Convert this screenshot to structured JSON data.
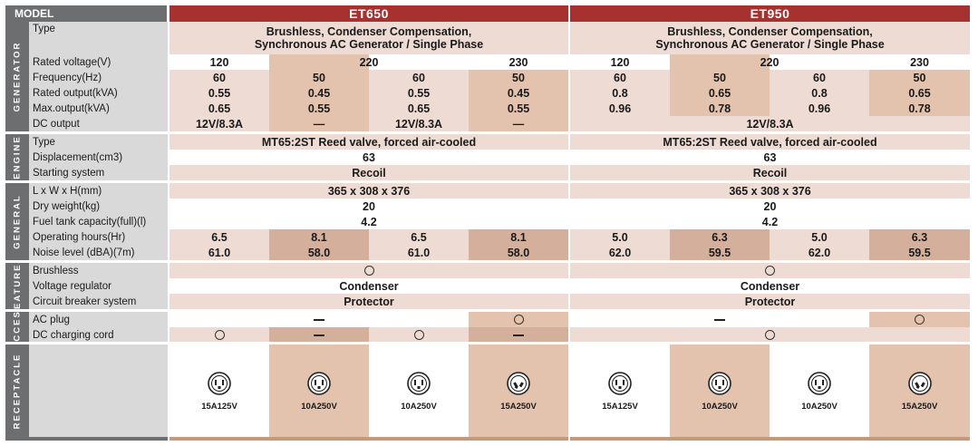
{
  "header": {
    "model_label": "MODEL",
    "et650": "ET650",
    "et950": "ET950"
  },
  "sections": [
    "GENERATOR",
    "ENGINE",
    "GENERAL",
    "FEATURES",
    "ACCES.",
    "RECEPTACLE"
  ],
  "labels": {
    "type": "Type",
    "voltage": "Rated voltage(V)",
    "frequency": "Frequency(Hz)",
    "rated_output": "Rated output(kVA)",
    "max_output": "Max.output(kVA)",
    "dc_output": "DC output",
    "engine_type": "Type",
    "displacement": "Displacement(cm3)",
    "starting": "Starting system",
    "dims": "L x W x H(mm)",
    "dry_weight": "Dry weight(kg)",
    "fuel_tank": "Fuel tank capacity(full)(l)",
    "op_hours": "Operating hours(Hr)",
    "noise": "Noise level (dBA)(7m)",
    "brushless": "Brushless",
    "voltage_reg": "Voltage regulator",
    "breaker": "Circuit breaker system",
    "ac_plug": "AC plug",
    "dc_cord": "DC charging cord"
  },
  "et650": {
    "type_line1": "Brushless, Condenser Compensation,",
    "type_line2": "Synchronous AC Generator / Single Phase",
    "voltage": [
      "120",
      "220",
      "230"
    ],
    "frequency": [
      "60",
      "50",
      "60",
      "50"
    ],
    "rated_output": [
      "0.55",
      "0.45",
      "0.55",
      "0.45"
    ],
    "max_output": [
      "0.65",
      "0.55",
      "0.65",
      "0.55"
    ],
    "dc_output": [
      "12V/8.3A",
      "—",
      "12V/8.3A",
      "—"
    ],
    "engine_type": "MT65:2ST Reed valve, forced air-cooled",
    "displacement": "63",
    "starting": "Recoil",
    "dims": "365 x 308 x 376",
    "dry_weight": "20",
    "fuel_tank": "4.2",
    "op_hours": [
      "6.5",
      "8.1",
      "6.5",
      "8.1"
    ],
    "noise": [
      "61.0",
      "58.0",
      "61.0",
      "58.0"
    ],
    "voltage_reg": "Condenser",
    "breaker": "Protector",
    "receptacles": [
      "15A125V",
      "10A250V",
      "10A250V",
      "15A250V"
    ]
  },
  "et950": {
    "type_line1": "Brushless, Condenser Compensation,",
    "type_line2": "Synchronous AC Generator / Single Phase",
    "voltage": [
      "120",
      "220",
      "230"
    ],
    "frequency": [
      "60",
      "50",
      "60",
      "50"
    ],
    "rated_output": [
      "0.8",
      "0.65",
      "0.8",
      "0.65"
    ],
    "max_output": [
      "0.96",
      "0.78",
      "0.96",
      "0.78"
    ],
    "dc_output": "12V/8.3A",
    "engine_type": "MT65:2ST Reed valve, forced air-cooled",
    "displacement": "63",
    "starting": "Recoil",
    "dims": "365 x 308 x 376",
    "dry_weight": "20",
    "fuel_tank": "4.2",
    "op_hours": [
      "5.0",
      "6.3",
      "5.0",
      "6.3"
    ],
    "noise": [
      "62.0",
      "59.5",
      "62.0",
      "59.5"
    ],
    "voltage_reg": "Condenser",
    "breaker": "Protector",
    "receptacles": [
      "15A125V",
      "10A250V",
      "10A250V",
      "15A250V"
    ]
  },
  "colors": {
    "light": "#eedbd3",
    "dark": "#e3c3ae",
    "dark2": "#d4b09c",
    "red": "#a6312f",
    "gray": "#6d6e70",
    "label": "#d9d9d9"
  },
  "icons": {
    "yes": "circle-mark",
    "no": "dash-mark",
    "receptacle": "outlet-icon"
  }
}
